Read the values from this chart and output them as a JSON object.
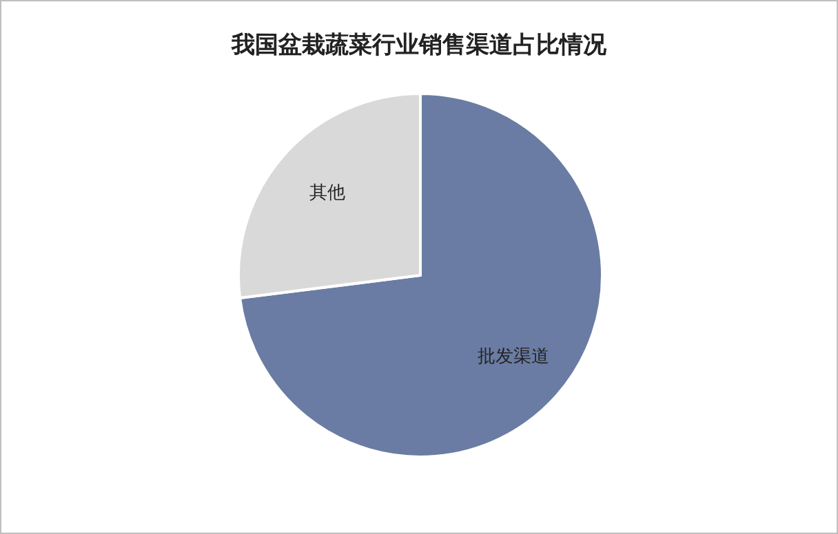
{
  "chart_data": {
    "type": "pie",
    "title": "我国盆栽蔬菜行业销售渠道占比情况",
    "categories": [
      "批发渠道",
      "其他"
    ],
    "values": [
      73,
      27
    ],
    "colors": [
      "#6a7ca3",
      "#d9d9d9"
    ]
  }
}
